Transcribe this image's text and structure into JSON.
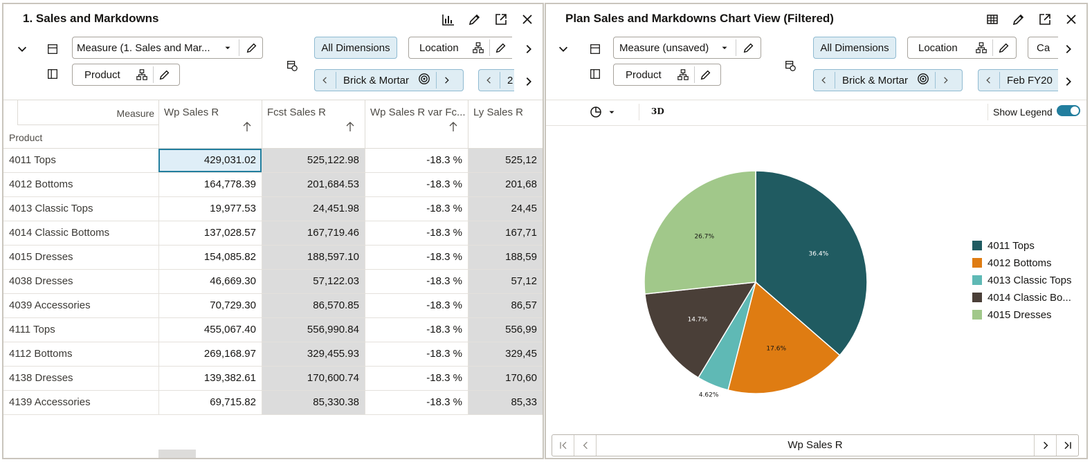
{
  "left_panel": {
    "title": "1. Sales and Markdowns",
    "measure_label": "Measure (1. Sales and Mar...",
    "product_label": "Product",
    "all_dimensions": "All Dimensions",
    "location_label": "Location",
    "brick_label": "Brick & Mortar",
    "next_chip_partial": "2",
    "header_measure": "Measure",
    "header_product": "Product",
    "columns": [
      "Wp Sales R",
      "Fcst Sales R",
      "Wp Sales R var Fc...",
      "Ly Sales R"
    ],
    "rows": [
      {
        "name": "4011 Tops",
        "wp": "429,031.02",
        "fcst": "525,122.98",
        "var": "-18.3 %",
        "ly": "525,12"
      },
      {
        "name": "4012 Bottoms",
        "wp": "164,778.39",
        "fcst": "201,684.53",
        "var": "-18.3 %",
        "ly": "201,68"
      },
      {
        "name": "4013 Classic Tops",
        "wp": "19,977.53",
        "fcst": "24,451.98",
        "var": "-18.3 %",
        "ly": "24,45"
      },
      {
        "name": "4014 Classic Bottoms",
        "wp": "137,028.57",
        "fcst": "167,719.46",
        "var": "-18.3 %",
        "ly": "167,71"
      },
      {
        "name": "4015 Dresses",
        "wp": "154,085.82",
        "fcst": "188,597.10",
        "var": "-18.3 %",
        "ly": "188,59"
      },
      {
        "name": "4038 Dresses",
        "wp": "46,669.30",
        "fcst": "57,122.03",
        "var": "-18.3 %",
        "ly": "57,12"
      },
      {
        "name": "4039 Accessories",
        "wp": "70,729.30",
        "fcst": "86,570.85",
        "var": "-18.3 %",
        "ly": "86,57"
      },
      {
        "name": "4111 Tops",
        "wp": "455,067.40",
        "fcst": "556,990.84",
        "var": "-18.3 %",
        "ly": "556,99"
      },
      {
        "name": "4112 Bottoms",
        "wp": "269,168.97",
        "fcst": "329,455.93",
        "var": "-18.3 %",
        "ly": "329,45"
      },
      {
        "name": "4138 Dresses",
        "wp": "139,382.61",
        "fcst": "170,600.74",
        "var": "-18.3 %",
        "ly": "170,60"
      },
      {
        "name": "4139 Accessories",
        "wp": "69,715.82",
        "fcst": "85,330.38",
        "var": "-18.3 %",
        "ly": "85,33"
      }
    ]
  },
  "right_panel": {
    "title": "Plan Sales and Markdowns Chart View (Filtered)",
    "measure_label": "Measure (unsaved)",
    "product_label": "Product",
    "all_dimensions": "All Dimensions",
    "location_label": "Location",
    "calendar_partial": "Ca",
    "brick_label": "Brick & Mortar",
    "period_label": "Feb FY20",
    "label_3d": "3D",
    "show_legend": "Show Legend",
    "pager_label": "Wp Sales R"
  },
  "colors": {
    "tops": "#205b61",
    "bottoms": "#df7c12",
    "classic_tops": "#5fb9b5",
    "classic_bottoms": "#4a3f38",
    "dresses": "#a1c88a"
  },
  "chart_data": {
    "type": "pie",
    "title": "",
    "categories": [
      "4011 Tops",
      "4012 Bottoms",
      "4013 Classic Tops",
      "4014 Classic Bo...",
      "4015 Dresses"
    ],
    "values": [
      36.4,
      17.6,
      4.62,
      14.7,
      26.7
    ],
    "value_labels": [
      "36.4%",
      "17.6%",
      "4.62%",
      "14.7%",
      "26.7%"
    ],
    "legend_position": "right"
  }
}
